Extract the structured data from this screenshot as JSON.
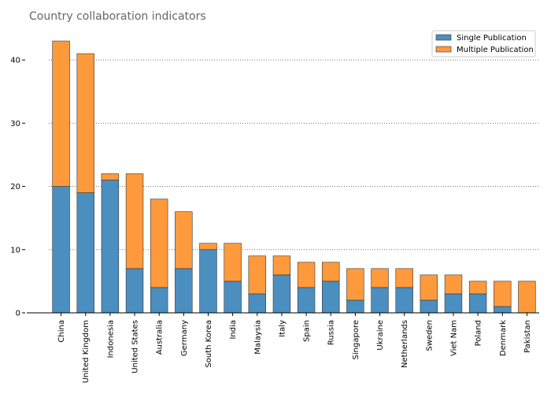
{
  "chart_data": {
    "type": "bar",
    "stacked": true,
    "title": "Country collaboration indicators",
    "xlabel": "",
    "ylabel": "",
    "ylim": [
      0,
      45
    ],
    "yticks": [
      0,
      10,
      20,
      30,
      40
    ],
    "grid": "y-dotted",
    "legend_position": "top-right",
    "categories": [
      "China",
      "United Kingdom",
      "Indonesia",
      "United States",
      "Australia",
      "Germany",
      "South Korea",
      "India",
      "Malaysia",
      "Italy",
      "Spain",
      "Russia",
      "Singapore",
      "Ukraine",
      "Netherlands",
      "Sweden",
      "Viet Nam",
      "Poland",
      "Denmark",
      "Pakistan"
    ],
    "series": [
      {
        "name": "Single Publication",
        "color": "#4b8fc1",
        "values": [
          20,
          19,
          21,
          7,
          4,
          7,
          10,
          5,
          3,
          6,
          4,
          5,
          2,
          4,
          4,
          2,
          3,
          3,
          1,
          0
        ]
      },
      {
        "name": "Multiple Publication",
        "color": "#ff9a3c",
        "values": [
          23,
          22,
          1,
          15,
          14,
          9,
          1,
          6,
          6,
          3,
          4,
          3,
          5,
          3,
          3,
          4,
          3,
          2,
          4,
          5
        ]
      }
    ]
  }
}
